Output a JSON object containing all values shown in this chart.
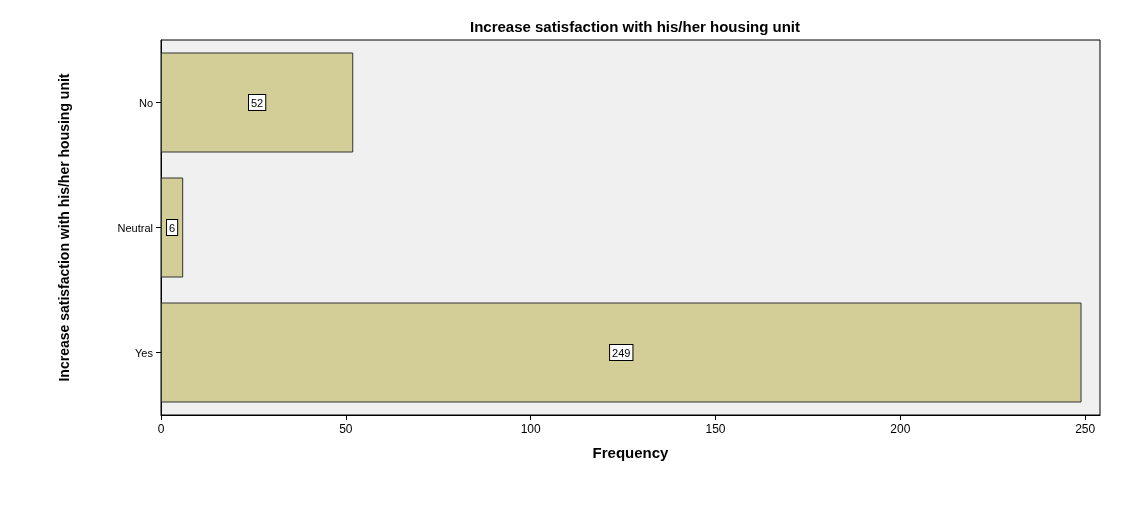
{
  "chart_data": {
    "type": "bar",
    "orientation": "horizontal",
    "title": "Increase satisfaction with his/her housing unit",
    "xlabel": "Frequency",
    "ylabel": "Increase satisfaction with his/her housing unit",
    "categories": [
      "No",
      "Neutral",
      "Yes"
    ],
    "values": [
      52,
      6,
      249
    ],
    "color": "#d3ce97",
    "xlim": [
      0,
      254
    ],
    "xticks": [
      0,
      50,
      100,
      150,
      200,
      250
    ],
    "grid": false,
    "data_labels": true
  }
}
